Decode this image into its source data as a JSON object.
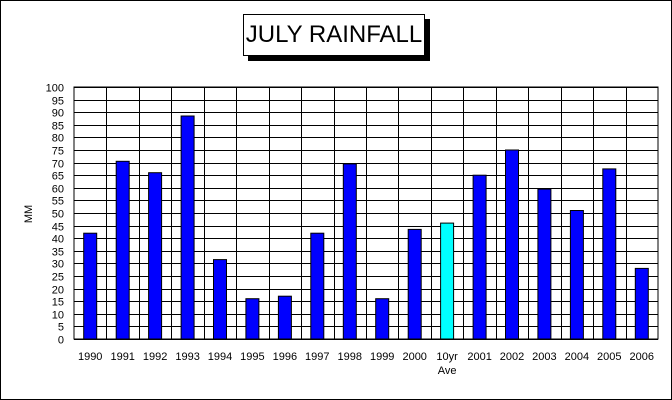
{
  "chart_data": {
    "type": "bar",
    "title": "JULY RAINFALL",
    "ylabel": "MM",
    "xlabel": "",
    "ylim": [
      0,
      100
    ],
    "ytick_step": 5,
    "grid": true,
    "categories": [
      "1990",
      "1991",
      "1992",
      "1993",
      "1994",
      "1995",
      "1996",
      "1997",
      "1998",
      "1999",
      "2000",
      "10yr\nAve",
      "2001",
      "2002",
      "2003",
      "2004",
      "2005",
      "2006"
    ],
    "values": [
      42,
      70.5,
      66,
      88.5,
      31.5,
      16,
      17,
      42,
      69.5,
      16,
      43.5,
      46,
      65,
      75,
      59.5,
      51,
      67.5,
      28
    ],
    "colors": {
      "bar": "#0000ff",
      "highlight_bar": "#00ffff",
      "grid": "#000000"
    },
    "highlight_index": 11
  }
}
